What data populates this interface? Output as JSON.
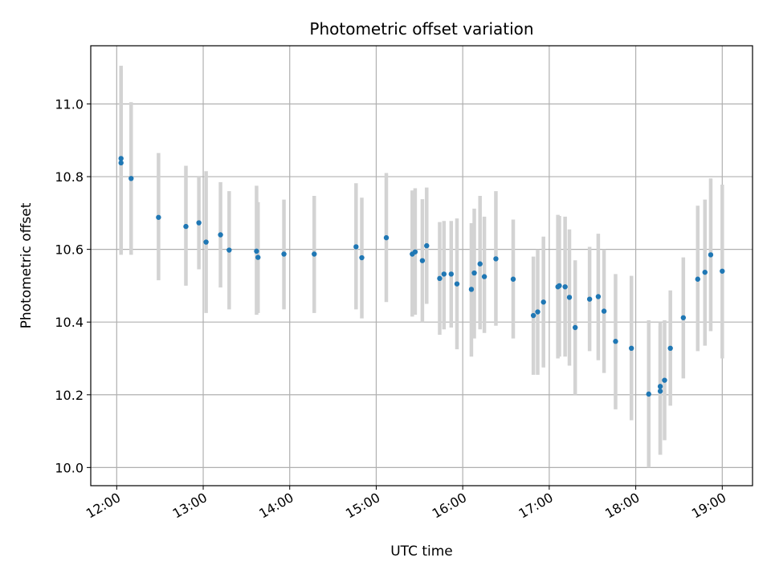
{
  "chart_data": {
    "type": "scatter",
    "title": "Photometric offset variation",
    "xlabel": "UTC time",
    "ylabel": "Photometric offset",
    "x_tick_labels": [
      "12:00",
      "13:00",
      "14:00",
      "15:00",
      "16:00",
      "17:00",
      "18:00",
      "19:00"
    ],
    "y_tick_labels": [
      "10.0",
      "10.2",
      "10.4",
      "10.6",
      "10.8",
      "11.0"
    ],
    "x_ticks_hours": [
      12,
      13,
      14,
      15,
      16,
      17,
      18,
      19
    ],
    "y_ticks": [
      10.0,
      10.2,
      10.4,
      10.6,
      10.8,
      11.0
    ],
    "xlim_hours": [
      11.7,
      19.35
    ],
    "ylim": [
      9.95,
      11.16
    ],
    "grid": true,
    "point_color": "#1f77b4",
    "errorbar_color": "#d3d3d3",
    "points": [
      {
        "t": "12:03",
        "y": 10.85,
        "lo": 10.585,
        "hi": 11.105
      },
      {
        "t": "12:03",
        "y": 10.838,
        "lo": 10.59,
        "hi": 11.095
      },
      {
        "t": "12:10",
        "y": 10.795,
        "lo": 10.585,
        "hi": 11.005
      },
      {
        "t": "12:29",
        "y": 10.688,
        "lo": 10.515,
        "hi": 10.865
      },
      {
        "t": "12:48",
        "y": 10.663,
        "lo": 10.5,
        "hi": 10.83
      },
      {
        "t": "12:57",
        "y": 10.673,
        "lo": 10.545,
        "hi": 10.8
      },
      {
        "t": "13:02",
        "y": 10.62,
        "lo": 10.425,
        "hi": 10.815
      },
      {
        "t": "13:12",
        "y": 10.64,
        "lo": 10.495,
        "hi": 10.785
      },
      {
        "t": "13:18",
        "y": 10.598,
        "lo": 10.435,
        "hi": 10.76
      },
      {
        "t": "13:37",
        "y": 10.595,
        "lo": 10.42,
        "hi": 10.775
      },
      {
        "t": "13:38",
        "y": 10.578,
        "lo": 10.425,
        "hi": 10.73
      },
      {
        "t": "13:56",
        "y": 10.587,
        "lo": 10.435,
        "hi": 10.737
      },
      {
        "t": "14:17",
        "y": 10.587,
        "lo": 10.425,
        "hi": 10.747
      },
      {
        "t": "14:46",
        "y": 10.607,
        "lo": 10.435,
        "hi": 10.782
      },
      {
        "t": "14:50",
        "y": 10.577,
        "lo": 10.41,
        "hi": 10.742
      },
      {
        "t": "15:07",
        "y": 10.632,
        "lo": 10.455,
        "hi": 10.81
      },
      {
        "t": "15:25",
        "y": 10.587,
        "lo": 10.415,
        "hi": 10.762
      },
      {
        "t": "15:27",
        "y": 10.593,
        "lo": 10.42,
        "hi": 10.768
      },
      {
        "t": "15:32",
        "y": 10.569,
        "lo": 10.4,
        "hi": 10.738
      },
      {
        "t": "15:35",
        "y": 10.61,
        "lo": 10.45,
        "hi": 10.77
      },
      {
        "t": "15:44",
        "y": 10.52,
        "lo": 10.365,
        "hi": 10.675
      },
      {
        "t": "15:47",
        "y": 10.532,
        "lo": 10.38,
        "hi": 10.678
      },
      {
        "t": "15:52",
        "y": 10.532,
        "lo": 10.385,
        "hi": 10.678
      },
      {
        "t": "15:56",
        "y": 10.505,
        "lo": 10.325,
        "hi": 10.685
      },
      {
        "t": "16:06",
        "y": 10.49,
        "lo": 10.305,
        "hi": 10.672
      },
      {
        "t": "16:08",
        "y": 10.535,
        "lo": 10.355,
        "hi": 10.712
      },
      {
        "t": "16:12",
        "y": 10.56,
        "lo": 10.38,
        "hi": 10.747
      },
      {
        "t": "16:15",
        "y": 10.525,
        "lo": 10.37,
        "hi": 10.69
      },
      {
        "t": "16:23",
        "y": 10.574,
        "lo": 10.39,
        "hi": 10.76
      },
      {
        "t": "16:35",
        "y": 10.518,
        "lo": 10.355,
        "hi": 10.682
      },
      {
        "t": "16:49",
        "y": 10.418,
        "lo": 10.255,
        "hi": 10.58
      },
      {
        "t": "16:52",
        "y": 10.428,
        "lo": 10.255,
        "hi": 10.6
      },
      {
        "t": "16:56",
        "y": 10.455,
        "lo": 10.275,
        "hi": 10.635
      },
      {
        "t": "17:06",
        "y": 10.497,
        "lo": 10.3,
        "hi": 10.695
      },
      {
        "t": "17:07",
        "y": 10.5,
        "lo": 10.305,
        "hi": 10.692
      },
      {
        "t": "17:11",
        "y": 10.497,
        "lo": 10.305,
        "hi": 10.69
      },
      {
        "t": "17:14",
        "y": 10.468,
        "lo": 10.28,
        "hi": 10.655
      },
      {
        "t": "17:18",
        "y": 10.385,
        "lo": 10.2,
        "hi": 10.57
      },
      {
        "t": "17:28",
        "y": 10.463,
        "lo": 10.32,
        "hi": 10.607
      },
      {
        "t": "17:34",
        "y": 10.47,
        "lo": 10.295,
        "hi": 10.643
      },
      {
        "t": "17:38",
        "y": 10.43,
        "lo": 10.26,
        "hi": 10.6
      },
      {
        "t": "17:46",
        "y": 10.347,
        "lo": 10.16,
        "hi": 10.532
      },
      {
        "t": "17:57",
        "y": 10.328,
        "lo": 10.13,
        "hi": 10.527
      },
      {
        "t": "18:09",
        "y": 10.202,
        "lo": 10.0,
        "hi": 10.405
      },
      {
        "t": "18:17",
        "y": 10.223,
        "lo": 10.035,
        "hi": 10.4
      },
      {
        "t": "18:17",
        "y": 10.21,
        "lo": 10.035,
        "hi": 10.39
      },
      {
        "t": "18:20",
        "y": 10.24,
        "lo": 10.075,
        "hi": 10.405
      },
      {
        "t": "18:24",
        "y": 10.328,
        "lo": 10.17,
        "hi": 10.487
      },
      {
        "t": "18:33",
        "y": 10.412,
        "lo": 10.245,
        "hi": 10.578
      },
      {
        "t": "18:43",
        "y": 10.518,
        "lo": 10.32,
        "hi": 10.72
      },
      {
        "t": "18:48",
        "y": 10.537,
        "lo": 10.335,
        "hi": 10.737
      },
      {
        "t": "18:52",
        "y": 10.585,
        "lo": 10.375,
        "hi": 10.795
      },
      {
        "t": "19:00",
        "y": 10.54,
        "lo": 10.3,
        "hi": 10.778
      }
    ]
  }
}
